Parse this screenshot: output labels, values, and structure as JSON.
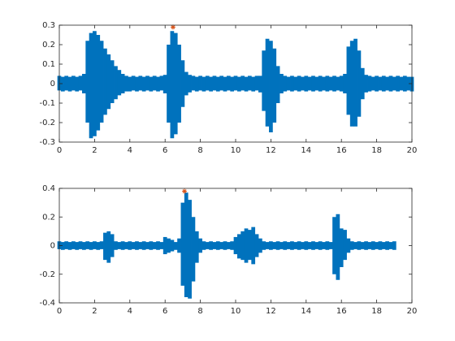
{
  "chart_data": [
    {
      "type": "waveform",
      "color": "#0072bd",
      "x": [
        0,
        0.2,
        0.4,
        0.6,
        0.8,
        1,
        1.2,
        1.4,
        1.6,
        1.8,
        2,
        2.2,
        2.4,
        2.6,
        2.8,
        3,
        3.2,
        3.4,
        3.6,
        3.8,
        4,
        4.2,
        4.4,
        4.6,
        4.8,
        5,
        5.2,
        5.4,
        5.6,
        5.8,
        6,
        6.2,
        6.4,
        6.6,
        6.8,
        7,
        7.2,
        7.4,
        7.6,
        7.8,
        8,
        8.2,
        8.4,
        8.6,
        8.8,
        9,
        9.2,
        9.4,
        9.6,
        9.8,
        10,
        10.2,
        10.4,
        10.6,
        10.8,
        11,
        11.2,
        11.4,
        11.6,
        11.8,
        12,
        12.2,
        12.4,
        12.6,
        12.8,
        13,
        13.2,
        13.4,
        13.6,
        13.8,
        14,
        14.2,
        14.4,
        14.6,
        14.8,
        15,
        15.2,
        15.4,
        15.6,
        15.8,
        16,
        16.2,
        16.4,
        16.6,
        16.8,
        17,
        17.2,
        17.4,
        17.6,
        17.8,
        18,
        18.2,
        18.4,
        18.6,
        18.8,
        19,
        19.2,
        19.4,
        19.6,
        19.8,
        20
      ],
      "high": [
        0.04,
        0.035,
        0.04,
        0.035,
        0.04,
        0.035,
        0.04,
        0.05,
        0.22,
        0.26,
        0.27,
        0.25,
        0.22,
        0.18,
        0.15,
        0.12,
        0.09,
        0.07,
        0.05,
        0.04,
        0.035,
        0.04,
        0.035,
        0.04,
        0.035,
        0.04,
        0.035,
        0.04,
        0.035,
        0.04,
        0.045,
        0.2,
        0.27,
        0.26,
        0.2,
        0.12,
        0.06,
        0.045,
        0.04,
        0.035,
        0.04,
        0.035,
        0.04,
        0.035,
        0.04,
        0.035,
        0.04,
        0.035,
        0.04,
        0.035,
        0.04,
        0.035,
        0.04,
        0.035,
        0.04,
        0.035,
        0.04,
        0.04,
        0.17,
        0.23,
        0.22,
        0.18,
        0.09,
        0.05,
        0.04,
        0.035,
        0.04,
        0.035,
        0.04,
        0.035,
        0.04,
        0.035,
        0.04,
        0.035,
        0.04,
        0.035,
        0.04,
        0.035,
        0.04,
        0.035,
        0.04,
        0.05,
        0.19,
        0.22,
        0.23,
        0.17,
        0.08,
        0.045,
        0.04,
        0.035,
        0.04,
        0.035,
        0.04,
        0.035,
        0.04,
        0.035,
        0.04,
        0.035,
        0.04,
        0.035,
        0.035
      ],
      "low": [
        -0.035,
        -0.04,
        -0.035,
        -0.04,
        -0.035,
        -0.04,
        -0.035,
        -0.05,
        -0.2,
        -0.28,
        -0.27,
        -0.24,
        -0.2,
        -0.16,
        -0.13,
        -0.1,
        -0.08,
        -0.06,
        -0.05,
        -0.04,
        -0.04,
        -0.035,
        -0.04,
        -0.035,
        -0.04,
        -0.035,
        -0.04,
        -0.035,
        -0.04,
        -0.035,
        -0.05,
        -0.2,
        -0.28,
        -0.26,
        -0.2,
        -0.12,
        -0.06,
        -0.045,
        -0.035,
        -0.04,
        -0.035,
        -0.04,
        -0.035,
        -0.04,
        -0.035,
        -0.04,
        -0.035,
        -0.04,
        -0.035,
        -0.04,
        -0.035,
        -0.04,
        -0.035,
        -0.04,
        -0.035,
        -0.04,
        -0.035,
        -0.045,
        -0.14,
        -0.22,
        -0.25,
        -0.2,
        -0.1,
        -0.05,
        -0.04,
        -0.035,
        -0.04,
        -0.035,
        -0.04,
        -0.035,
        -0.04,
        -0.035,
        -0.04,
        -0.035,
        -0.04,
        -0.035,
        -0.04,
        -0.035,
        -0.04,
        -0.035,
        -0.04,
        -0.05,
        -0.16,
        -0.22,
        -0.22,
        -0.17,
        -0.08,
        -0.045,
        -0.04,
        -0.035,
        -0.04,
        -0.035,
        -0.04,
        -0.035,
        -0.04,
        -0.035,
        -0.04,
        -0.035,
        -0.04,
        -0.035,
        -0.04
      ],
      "peak": {
        "x": [
          6.45
        ],
        "values": [
          0.29
        ],
        "color": "#d95319"
      },
      "xlim": [
        0,
        20
      ],
      "ylim": [
        -0.3,
        0.3
      ],
      "xticks": [
        0,
        2,
        4,
        6,
        8,
        10,
        12,
        14,
        16,
        18,
        20
      ],
      "yticks": [
        -0.3,
        -0.2,
        -0.1,
        0,
        0.1,
        0.2,
        0.3
      ]
    },
    {
      "type": "waveform",
      "color": "#0072bd",
      "x": [
        0,
        0.2,
        0.4,
        0.6,
        0.8,
        1,
        1.2,
        1.4,
        1.6,
        1.8,
        2,
        2.2,
        2.4,
        2.6,
        2.8,
        3,
        3.2,
        3.4,
        3.6,
        3.8,
        4,
        4.2,
        4.4,
        4.6,
        4.8,
        5,
        5.2,
        5.4,
        5.6,
        5.8,
        6,
        6.2,
        6.4,
        6.6,
        6.8,
        7,
        7.2,
        7.4,
        7.6,
        7.8,
        8,
        8.2,
        8.4,
        8.6,
        8.8,
        9,
        9.2,
        9.4,
        9.6,
        9.8,
        10,
        10.2,
        10.4,
        10.6,
        10.8,
        11,
        11.2,
        11.4,
        11.6,
        11.8,
        12,
        12.2,
        12.4,
        12.6,
        12.8,
        13,
        13.2,
        13.4,
        13.6,
        13.8,
        14,
        14.2,
        14.4,
        14.6,
        14.8,
        15,
        15.2,
        15.4,
        15.6,
        15.8,
        16,
        16.2,
        16.4,
        16.6,
        16.8,
        17,
        17.2,
        17.4,
        17.6,
        17.8,
        18,
        18.2,
        18.4,
        18.6,
        18.8,
        19
      ],
      "high": [
        0.03,
        0.025,
        0.03,
        0.025,
        0.03,
        0.025,
        0.03,
        0.025,
        0.03,
        0.025,
        0.03,
        0.025,
        0.03,
        0.09,
        0.1,
        0.08,
        0.03,
        0.025,
        0.03,
        0.025,
        0.03,
        0.025,
        0.03,
        0.025,
        0.03,
        0.025,
        0.03,
        0.025,
        0.03,
        0.025,
        0.06,
        0.05,
        0.04,
        0.025,
        0.05,
        0.3,
        0.37,
        0.32,
        0.2,
        0.1,
        0.05,
        0.03,
        0.025,
        0.03,
        0.025,
        0.03,
        0.025,
        0.03,
        0.025,
        0.03,
        0.06,
        0.08,
        0.1,
        0.12,
        0.11,
        0.13,
        0.08,
        0.05,
        0.03,
        0.025,
        0.03,
        0.025,
        0.03,
        0.025,
        0.03,
        0.025,
        0.03,
        0.025,
        0.03,
        0.025,
        0.03,
        0.025,
        0.03,
        0.025,
        0.03,
        0.025,
        0.03,
        0.025,
        0.2,
        0.22,
        0.12,
        0.11,
        0.05,
        0.03,
        0.025,
        0.03,
        0.025,
        0.03,
        0.025,
        0.03,
        0.025,
        0.03,
        0.025,
        0.03,
        0.025,
        0.03
      ],
      "low": [
        -0.025,
        -0.03,
        -0.025,
        -0.03,
        -0.025,
        -0.03,
        -0.025,
        -0.03,
        -0.025,
        -0.03,
        -0.025,
        -0.03,
        -0.025,
        -0.1,
        -0.12,
        -0.08,
        -0.03,
        -0.025,
        -0.03,
        -0.025,
        -0.03,
        -0.025,
        -0.03,
        -0.025,
        -0.03,
        -0.025,
        -0.03,
        -0.025,
        -0.03,
        -0.025,
        -0.06,
        -0.05,
        -0.04,
        -0.03,
        -0.05,
        -0.28,
        -0.36,
        -0.37,
        -0.25,
        -0.12,
        -0.05,
        -0.03,
        -0.025,
        -0.03,
        -0.025,
        -0.03,
        -0.025,
        -0.03,
        -0.025,
        -0.03,
        -0.06,
        -0.09,
        -0.1,
        -0.12,
        -0.1,
        -0.13,
        -0.08,
        -0.05,
        -0.03,
        -0.025,
        -0.03,
        -0.025,
        -0.03,
        -0.025,
        -0.03,
        -0.025,
        -0.03,
        -0.025,
        -0.03,
        -0.025,
        -0.03,
        -0.025,
        -0.03,
        -0.025,
        -0.03,
        -0.025,
        -0.03,
        -0.025,
        -0.2,
        -0.24,
        -0.15,
        -0.1,
        -0.05,
        -0.03,
        -0.025,
        -0.03,
        -0.025,
        -0.03,
        -0.025,
        -0.03,
        -0.025,
        -0.03,
        -0.025,
        -0.03,
        -0.025,
        -0.03
      ],
      "peak": {
        "x": [
          7.1
        ],
        "values": [
          0.38
        ],
        "color": "#d95319"
      },
      "xlim": [
        0,
        20
      ],
      "ylim": [
        -0.4,
        0.4
      ],
      "xticks": [
        0,
        2,
        4,
        6,
        8,
        10,
        12,
        14,
        16,
        18,
        20
      ],
      "yticks": [
        -0.4,
        -0.2,
        0,
        0.2,
        0.4
      ]
    }
  ]
}
